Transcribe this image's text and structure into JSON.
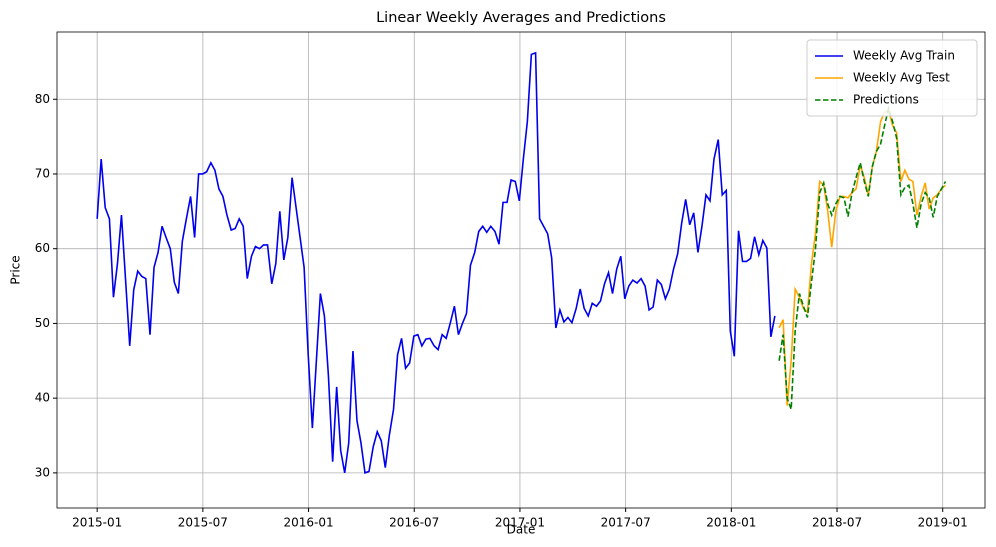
{
  "chart_data": {
    "type": "line",
    "title": "Linear Weekly Averages and Predictions",
    "x_label": "Date",
    "y_label": "Price",
    "xlim": [
      2014.81,
      2019.2
    ],
    "ylim": [
      25.3,
      89
    ],
    "xticks": [
      {
        "value": 2015,
        "label": "2015-01"
      },
      {
        "value": 2015.5,
        "label": "2015-07"
      },
      {
        "value": 2016,
        "label": "2016-01"
      },
      {
        "value": 2016.5,
        "label": "2016-07"
      },
      {
        "value": 2017,
        "label": "2017-01"
      },
      {
        "value": 2017.5,
        "label": "2017-07"
      },
      {
        "value": 2018,
        "label": "2018-01"
      },
      {
        "value": 2018.5,
        "label": "2018-07"
      },
      {
        "value": 2019,
        "label": "2019-01"
      }
    ],
    "yticks": [
      30,
      40,
      50,
      60,
      70,
      80
    ],
    "grid": true,
    "legend": "upper right",
    "series": [
      {
        "name": "Weekly Avg Train",
        "color": "#0000ee",
        "dash": "solid",
        "x": [
          2015,
          2015.019,
          2015.038,
          2015.058,
          2015.077,
          2015.096,
          2015.115,
          2015.134,
          2015.154,
          2015.173,
          2015.192,
          2015.211,
          2015.23,
          2015.25,
          2015.269,
          2015.288,
          2015.307,
          2015.326,
          2015.346,
          2015.365,
          2015.384,
          2015.403,
          2015.422,
          2015.442,
          2015.461,
          2015.48,
          2015.499,
          2015.518,
          2015.538,
          2015.557,
          2015.576,
          2015.595,
          2015.614,
          2015.634,
          2015.653,
          2015.672,
          2015.691,
          2015.71,
          2015.73,
          2015.749,
          2015.768,
          2015.787,
          2015.806,
          2015.826,
          2015.845,
          2015.864,
          2015.883,
          2015.902,
          2015.922,
          2015.941,
          2015.96,
          2015.979,
          2015.998,
          2016.018,
          2016.037,
          2016.056,
          2016.075,
          2016.094,
          2016.114,
          2016.133,
          2016.152,
          2016.171,
          2016.19,
          2016.21,
          2016.229,
          2016.248,
          2016.267,
          2016.286,
          2016.306,
          2016.325,
          2016.344,
          2016.363,
          2016.382,
          2016.402,
          2016.421,
          2016.44,
          2016.459,
          2016.478,
          2016.498,
          2016.517,
          2016.536,
          2016.555,
          2016.574,
          2016.594,
          2016.613,
          2016.632,
          2016.651,
          2016.67,
          2016.69,
          2016.709,
          2016.728,
          2016.747,
          2016.766,
          2016.786,
          2016.805,
          2016.824,
          2016.843,
          2016.862,
          2016.882,
          2016.901,
          2016.92,
          2016.939,
          2016.958,
          2016.978,
          2016.997,
          2017.016,
          2017.035,
          2017.054,
          2017.074,
          2017.093,
          2017.112,
          2017.131,
          2017.15,
          2017.17,
          2017.189,
          2017.208,
          2017.227,
          2017.246,
          2017.266,
          2017.285,
          2017.304,
          2017.323,
          2017.342,
          2017.362,
          2017.381,
          2017.4,
          2017.419,
          2017.438,
          2017.458,
          2017.477,
          2017.496,
          2017.515,
          2017.534,
          2017.554,
          2017.573,
          2017.592,
          2017.611,
          2017.63,
          2017.65,
          2017.669,
          2017.688,
          2017.707,
          2017.726,
          2017.746,
          2017.765,
          2017.784,
          2017.803,
          2017.822,
          2017.842,
          2017.861,
          2017.88,
          2017.899,
          2017.918,
          2017.938,
          2017.957,
          2017.976,
          2017.995,
          2018.014,
          2018.034,
          2018.053,
          2018.072,
          2018.091,
          2018.11,
          2018.13,
          2018.149,
          2018.168,
          2018.187,
          2018.206
        ],
        "values": [
          64,
          72,
          65.5,
          64,
          53.5,
          58,
          64.5,
          56,
          47,
          54.5,
          57,
          56.3,
          56,
          48.5,
          57.5,
          59.5,
          63,
          61.5,
          60,
          55.5,
          54,
          61,
          64,
          67,
          61.5,
          70,
          70,
          70.3,
          71.5,
          70.5,
          68,
          67,
          64.5,
          62.5,
          62.7,
          64,
          63,
          56,
          59,
          60.3,
          60,
          60.5,
          60.5,
          55.3,
          58,
          65,
          58.5,
          61.5,
          69.5,
          65.5,
          61.5,
          57.5,
          46,
          36,
          45,
          54,
          51,
          43,
          31.5,
          41.5,
          33,
          30,
          34,
          46.3,
          37,
          34,
          30,
          30.2,
          33.5,
          35.5,
          34.3,
          30.7,
          35,
          38.5,
          45.8,
          48,
          44,
          44.7,
          48.3,
          48.5,
          47,
          47.9,
          48,
          47,
          46.5,
          48.5,
          48,
          50,
          52.3,
          48.5,
          50,
          51.3,
          57.8,
          59.5,
          62.3,
          63,
          62.2,
          63,
          62.3,
          60.6,
          66.2,
          66.2,
          69.2,
          69,
          66.4,
          72,
          77,
          86,
          86.2,
          64,
          63,
          62,
          58.8,
          49.4,
          51.8,
          50.2,
          50.8,
          50.1,
          52,
          54.6,
          52,
          51,
          52.7,
          52.3,
          53,
          55.3,
          56.8,
          54,
          57.3,
          59,
          53.3,
          55,
          55.8,
          55.4,
          56,
          55,
          51.8,
          52.2,
          55.8,
          55.2,
          53.3,
          54.6,
          57.2,
          59.3,
          63.4,
          66.6,
          63.2,
          64.8,
          59.5,
          63,
          67.2,
          66.4,
          72,
          74.6,
          67.2,
          67.8,
          49,
          45.6,
          62.4,
          58.3,
          58.3,
          58.7,
          61.6,
          59.2,
          61.1,
          60.1,
          48.2,
          51
        ]
      },
      {
        "name": "Weekly Avg Test",
        "color": "#ffa500",
        "dash": "solid",
        "x": [
          2018.226,
          2018.245,
          2018.264,
          2018.283,
          2018.302,
          2018.322,
          2018.341,
          2018.36,
          2018.379,
          2018.398,
          2018.418,
          2018.437,
          2018.456,
          2018.475,
          2018.494,
          2018.514,
          2018.533,
          2018.552,
          2018.571,
          2018.59,
          2018.61,
          2018.629,
          2018.648,
          2018.667,
          2018.686,
          2018.706,
          2018.725,
          2018.744,
          2018.763,
          2018.782,
          2018.802,
          2018.821,
          2018.84,
          2018.859,
          2018.878,
          2018.898,
          2018.917,
          2018.936,
          2018.955,
          2018.974,
          2018.994,
          2019.013
        ],
        "values": [
          49.4,
          50.5,
          39,
          45,
          54.6,
          53.5,
          52,
          51.5,
          58,
          62,
          69,
          68.5,
          65,
          60.2,
          65,
          67,
          67,
          66.8,
          67.5,
          68,
          71.2,
          69.5,
          67.2,
          71,
          73,
          77,
          78.3,
          78.5,
          76.5,
          75.5,
          69,
          70.5,
          69.3,
          69,
          64.5,
          67,
          68.8,
          65.3,
          66.8,
          67.2,
          68,
          68.5
        ]
      },
      {
        "name": "Predictions",
        "color": "#008000",
        "dash": "dashed",
        "x": [
          2018.226,
          2018.245,
          2018.264,
          2018.283,
          2018.302,
          2018.322,
          2018.341,
          2018.36,
          2018.379,
          2018.398,
          2018.418,
          2018.437,
          2018.456,
          2018.475,
          2018.494,
          2018.514,
          2018.533,
          2018.552,
          2018.571,
          2018.59,
          2018.61,
          2018.629,
          2018.648,
          2018.667,
          2018.686,
          2018.706,
          2018.725,
          2018.744,
          2018.763,
          2018.782,
          2018.802,
          2018.821,
          2018.84,
          2018.859,
          2018.878,
          2018.898,
          2018.917,
          2018.936,
          2018.955,
          2018.974,
          2018.994,
          2019.013
        ],
        "values": [
          45,
          48.5,
          40,
          38.5,
          49,
          54,
          52.3,
          50.8,
          55.5,
          60,
          67.5,
          68.8,
          66,
          64.5,
          66,
          67,
          66.8,
          64.3,
          67.5,
          69.5,
          71.5,
          69,
          67,
          71,
          73,
          74,
          76.5,
          78.8,
          77,
          74.8,
          67.2,
          68.2,
          68.5,
          66,
          62.8,
          66,
          67.5,
          66.8,
          64.2,
          67,
          68,
          69
        ]
      }
    ]
  }
}
